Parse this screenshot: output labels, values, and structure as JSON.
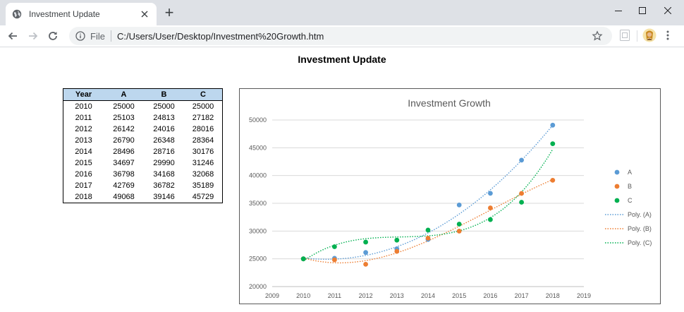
{
  "browser": {
    "tab_title": "Investment Update",
    "new_tab_symbol": "+",
    "address": {
      "scheme_label": "File",
      "url": "C:/Users/User/Desktop/Investment%20Growth.htm"
    },
    "window_controls": [
      "minimize-icon",
      "maximize-icon",
      "close-icon"
    ],
    "nav_icons": [
      "back-arrow-icon",
      "forward-arrow-icon",
      "reload-icon"
    ],
    "colors": {
      "tabstrip": "#dee1e6",
      "omnibox": "#f1f3f4"
    }
  },
  "page": {
    "title": "Investment Update"
  },
  "table": {
    "headers": [
      "Year",
      "A",
      "B",
      "C"
    ],
    "rows": [
      [
        "2010",
        "25000",
        "25000",
        "25000"
      ],
      [
        "2011",
        "25103",
        "24813",
        "27182"
      ],
      [
        "2012",
        "26142",
        "24016",
        "28016"
      ],
      [
        "2013",
        "26790",
        "26348",
        "28364"
      ],
      [
        "2014",
        "28496",
        "28716",
        "30176"
      ],
      [
        "2015",
        "34697",
        "29990",
        "31246"
      ],
      [
        "2016",
        "36798",
        "34168",
        "32068"
      ],
      [
        "2017",
        "42769",
        "36782",
        "35189"
      ],
      [
        "2018",
        "49068",
        "39146",
        "45729"
      ]
    ],
    "header_color": "#bdd7ee"
  },
  "chart_data": {
    "type": "scatter",
    "title": "Investment Growth",
    "xlim": [
      2009,
      2019
    ],
    "ylim": [
      20000,
      50000
    ],
    "x_ticks": [
      "2009",
      "2010",
      "2011",
      "2012",
      "2013",
      "2014",
      "2015",
      "2016",
      "2017",
      "2018",
      "2019"
    ],
    "y_ticks": [
      "20000",
      "25000",
      "30000",
      "35000",
      "40000",
      "45000",
      "50000"
    ],
    "grid": true,
    "legend_position": "right",
    "x": [
      2010,
      2011,
      2012,
      2013,
      2014,
      2015,
      2016,
      2017,
      2018
    ],
    "series": [
      {
        "name": "A",
        "color": "#5b9bd5",
        "values": [
          25000,
          25103,
          26142,
          26790,
          28496,
          34697,
          36798,
          42769,
          49068
        ]
      },
      {
        "name": "B",
        "color": "#ed7d31",
        "values": [
          25000,
          24813,
          24016,
          26348,
          28716,
          29990,
          34168,
          36782,
          39146
        ]
      },
      {
        "name": "C",
        "color": "#00b050",
        "values": [
          25000,
          27182,
          28016,
          28364,
          30176,
          31246,
          32068,
          35189,
          45729
        ]
      }
    ],
    "trendlines": [
      {
        "name": "Poly. (A)",
        "color": "#5b9bd5"
      },
      {
        "name": "Poly. (B)",
        "color": "#ed7d31"
      },
      {
        "name": "Poly. (C)",
        "color": "#00b050"
      }
    ]
  }
}
